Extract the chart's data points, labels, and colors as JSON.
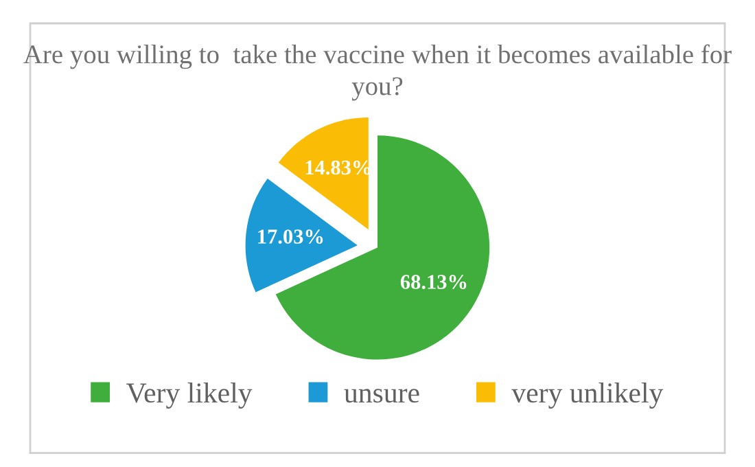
{
  "chart_data": {
    "type": "pie",
    "title": "Are you willing to  take the vaccine when it becomes available for you?",
    "categories": [
      "Very likely",
      "unsure",
      "very unlikely"
    ],
    "values": [
      68.13,
      17.03,
      14.83
    ],
    "value_labels": [
      "68.13%",
      "17.03%",
      "14.83%"
    ],
    "colors": [
      "#3fae3c",
      "#1c9ad6",
      "#fbbc05"
    ],
    "legend": "bottom"
  }
}
